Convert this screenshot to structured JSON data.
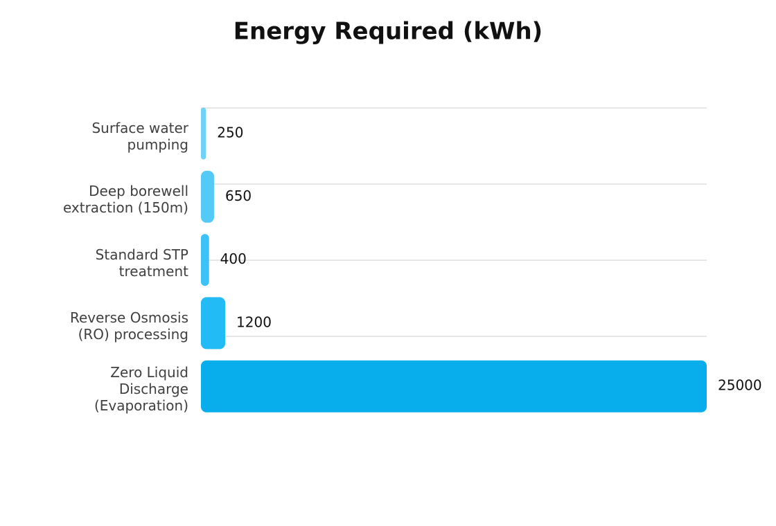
{
  "chart_data": {
    "type": "bar",
    "orientation": "horizontal",
    "title": "Energy Required (kWh)",
    "categories": [
      "Surface water pumping",
      "Deep borewell extraction (150m)",
      "Standard STP treatment",
      "Reverse Osmosis (RO) processing",
      "Zero Liquid Discharge (Evaporation)"
    ],
    "values": [
      250,
      650,
      400,
      1200,
      25000
    ],
    "colors": [
      "#6fd3f7",
      "#55caf6",
      "#3cc2f6",
      "#22bbf6",
      "#08aeeb"
    ],
    "xlim": [
      0,
      25000
    ]
  }
}
